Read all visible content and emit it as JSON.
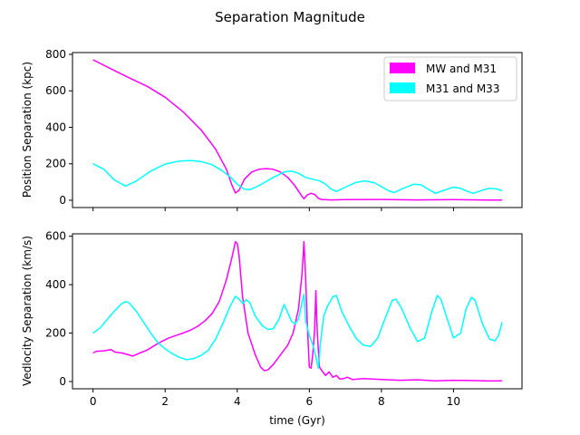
{
  "figure": {
    "title": "Separation Magnitude",
    "xlabel": "time (Gyr)"
  },
  "colors": {
    "mw_m31": "#ff00ff",
    "m31_m33": "#00ffff"
  },
  "chart_data": [
    {
      "type": "line",
      "ylabel": "Position Separation (kpc)",
      "xlim": [
        -0.57,
        11.9
      ],
      "ylim": [
        -40,
        810
      ],
      "xticks": [
        0,
        2,
        4,
        6,
        8,
        10
      ],
      "yticks": [
        0,
        200,
        400,
        600,
        800
      ],
      "legend": {
        "placement": "upper right",
        "entries": [
          "MW and M31",
          "M31 and M33"
        ]
      },
      "series": [
        {
          "name": "MW and M31",
          "color": "#ff00ff",
          "points": [
            [
              0,
              770
            ],
            [
              0.5,
              720
            ],
            [
              1,
              672
            ],
            [
              1.5,
              625
            ],
            [
              2,
              565
            ],
            [
              2.5,
              485
            ],
            [
              3,
              385
            ],
            [
              3.4,
              280
            ],
            [
              3.7,
              170
            ],
            [
              3.85,
              85
            ],
            [
              3.95,
              40
            ],
            [
              4.05,
              55
            ],
            [
              4.2,
              115
            ],
            [
              4.4,
              155
            ],
            [
              4.6,
              170
            ],
            [
              4.8,
              173
            ],
            [
              5.0,
              170
            ],
            [
              5.2,
              155
            ],
            [
              5.4,
              125
            ],
            [
              5.6,
              80
            ],
            [
              5.8,
              20
            ],
            [
              5.85,
              8
            ],
            [
              5.95,
              30
            ],
            [
              6.05,
              38
            ],
            [
              6.15,
              32
            ],
            [
              6.25,
              10
            ],
            [
              6.35,
              4
            ],
            [
              6.6,
              2
            ],
            [
              7,
              3
            ],
            [
              8,
              4
            ],
            [
              9,
              2
            ],
            [
              10,
              3
            ],
            [
              11,
              1
            ],
            [
              11.35,
              1
            ]
          ]
        },
        {
          "name": "M31 and M33",
          "color": "#00ffff",
          "points": [
            [
              0,
              200
            ],
            [
              0.3,
              170
            ],
            [
              0.6,
              110
            ],
            [
              0.9,
              78
            ],
            [
              1.2,
              105
            ],
            [
              1.6,
              160
            ],
            [
              2.0,
              198
            ],
            [
              2.4,
              215
            ],
            [
              2.7,
              218
            ],
            [
              3.0,
              212
            ],
            [
              3.3,
              195
            ],
            [
              3.6,
              160
            ],
            [
              3.85,
              120
            ],
            [
              4.0,
              88
            ],
            [
              4.2,
              60
            ],
            [
              4.35,
              58
            ],
            [
              4.6,
              80
            ],
            [
              5.0,
              125
            ],
            [
              5.3,
              155
            ],
            [
              5.5,
              160
            ],
            [
              5.7,
              148
            ],
            [
              5.9,
              125
            ],
            [
              6.1,
              115
            ],
            [
              6.3,
              105
            ],
            [
              6.45,
              88
            ],
            [
              6.6,
              62
            ],
            [
              6.75,
              48
            ],
            [
              7.0,
              72
            ],
            [
              7.3,
              98
            ],
            [
              7.55,
              106
            ],
            [
              7.8,
              96
            ],
            [
              8.0,
              75
            ],
            [
              8.2,
              52
            ],
            [
              8.35,
              42
            ],
            [
              8.6,
              65
            ],
            [
              8.9,
              88
            ],
            [
              9.1,
              85
            ],
            [
              9.3,
              60
            ],
            [
              9.5,
              38
            ],
            [
              9.7,
              52
            ],
            [
              10.0,
              72
            ],
            [
              10.2,
              65
            ],
            [
              10.4,
              48
            ],
            [
              10.55,
              38
            ],
            [
              10.8,
              55
            ],
            [
              11.0,
              66
            ],
            [
              11.2,
              62
            ],
            [
              11.35,
              52
            ]
          ]
        }
      ]
    },
    {
      "type": "line",
      "ylabel": "Vedlocity Separation (km/s)",
      "xlabel": "time (Gyr)",
      "xlim": [
        -0.57,
        11.9
      ],
      "ylim": [
        -30,
        610
      ],
      "xticks": [
        0,
        2,
        4,
        6,
        8,
        10
      ],
      "yticks": [
        0,
        200,
        400,
        600
      ],
      "series": [
        {
          "name": "MW and M31",
          "color": "#ff00ff",
          "points": [
            [
              0,
              118
            ],
            [
              0.1,
              125
            ],
            [
              0.3,
              127
            ],
            [
              0.5,
              132
            ],
            [
              0.6,
              122
            ],
            [
              0.8,
              118
            ],
            [
              1.0,
              110
            ],
            [
              1.1,
              105
            ],
            [
              1.3,
              118
            ],
            [
              1.5,
              130
            ],
            [
              1.7,
              148
            ],
            [
              1.9,
              165
            ],
            [
              2.1,
              180
            ],
            [
              2.3,
              190
            ],
            [
              2.5,
              200
            ],
            [
              2.7,
              212
            ],
            [
              2.9,
              228
            ],
            [
              3.1,
              250
            ],
            [
              3.3,
              280
            ],
            [
              3.5,
              330
            ],
            [
              3.7,
              420
            ],
            [
              3.85,
              510
            ],
            [
              3.95,
              578
            ],
            [
              4.0,
              570
            ],
            [
              4.05,
              520
            ],
            [
              4.15,
              350
            ],
            [
              4.3,
              200
            ],
            [
              4.5,
              110
            ],
            [
              4.65,
              60
            ],
            [
              4.75,
              45
            ],
            [
              4.85,
              48
            ],
            [
              5.0,
              70
            ],
            [
              5.2,
              110
            ],
            [
              5.4,
              150
            ],
            [
              5.55,
              200
            ],
            [
              5.7,
              300
            ],
            [
              5.8,
              450
            ],
            [
              5.85,
              578
            ],
            [
              5.9,
              420
            ],
            [
              5.95,
              220
            ],
            [
              6.0,
              60
            ],
            [
              6.05,
              55
            ],
            [
              6.1,
              120
            ],
            [
              6.15,
              220
            ],
            [
              6.18,
              375
            ],
            [
              6.22,
              200
            ],
            [
              6.28,
              60
            ],
            [
              6.35,
              45
            ],
            [
              6.45,
              25
            ],
            [
              6.55,
              40
            ],
            [
              6.65,
              18
            ],
            [
              6.75,
              25
            ],
            [
              6.85,
              10
            ],
            [
              6.95,
              12
            ],
            [
              7.05,
              18
            ],
            [
              7.2,
              8
            ],
            [
              7.5,
              12
            ],
            [
              8,
              8
            ],
            [
              8.5,
              5
            ],
            [
              9,
              7
            ],
            [
              9.5,
              3
            ],
            [
              10,
              5
            ],
            [
              10.5,
              4
            ],
            [
              11,
              2
            ],
            [
              11.35,
              3
            ]
          ]
        },
        {
          "name": "M31 and M33",
          "color": "#00ffff",
          "points": [
            [
              0,
              200
            ],
            [
              0.2,
              222
            ],
            [
              0.4,
              258
            ],
            [
              0.6,
              292
            ],
            [
              0.8,
              322
            ],
            [
              0.9,
              330
            ],
            [
              1.0,
              325
            ],
            [
              1.2,
              290
            ],
            [
              1.4,
              245
            ],
            [
              1.6,
              200
            ],
            [
              1.8,
              160
            ],
            [
              2.0,
              135
            ],
            [
              2.2,
              115
            ],
            [
              2.4,
              100
            ],
            [
              2.6,
              90
            ],
            [
              2.8,
              95
            ],
            [
              3.0,
              108
            ],
            [
              3.2,
              130
            ],
            [
              3.4,
              175
            ],
            [
              3.6,
              240
            ],
            [
              3.8,
              310
            ],
            [
              3.95,
              352
            ],
            [
              4.05,
              340
            ],
            [
              4.15,
              322
            ],
            [
              4.25,
              338
            ],
            [
              4.35,
              325
            ],
            [
              4.5,
              270
            ],
            [
              4.7,
              230
            ],
            [
              4.85,
              215
            ],
            [
              5.0,
              218
            ],
            [
              5.15,
              255
            ],
            [
              5.3,
              318
            ],
            [
              5.4,
              285
            ],
            [
              5.5,
              250
            ],
            [
              5.6,
              238
            ],
            [
              5.7,
              258
            ],
            [
              5.8,
              330
            ],
            [
              5.85,
              360
            ],
            [
              5.9,
              250
            ],
            [
              6.0,
              190
            ],
            [
              6.1,
              150
            ],
            [
              6.2,
              90
            ],
            [
              6.25,
              55
            ],
            [
              6.3,
              150
            ],
            [
              6.4,
              270
            ],
            [
              6.5,
              310
            ],
            [
              6.65,
              350
            ],
            [
              6.75,
              355
            ],
            [
              6.9,
              290
            ],
            [
              7.1,
              230
            ],
            [
              7.3,
              178
            ],
            [
              7.5,
              150
            ],
            [
              7.7,
              145
            ],
            [
              7.9,
              180
            ],
            [
              8.1,
              260
            ],
            [
              8.3,
              335
            ],
            [
              8.4,
              340
            ],
            [
              8.55,
              305
            ],
            [
              8.8,
              220
            ],
            [
              9.0,
              165
            ],
            [
              9.2,
              180
            ],
            [
              9.4,
              290
            ],
            [
              9.55,
              355
            ],
            [
              9.65,
              340
            ],
            [
              9.8,
              270
            ],
            [
              10.0,
              180
            ],
            [
              10.2,
              200
            ],
            [
              10.35,
              300
            ],
            [
              10.5,
              348
            ],
            [
              10.6,
              335
            ],
            [
              10.8,
              240
            ],
            [
              11.0,
              175
            ],
            [
              11.15,
              168
            ],
            [
              11.25,
              190
            ],
            [
              11.35,
              245
            ]
          ]
        }
      ]
    }
  ]
}
